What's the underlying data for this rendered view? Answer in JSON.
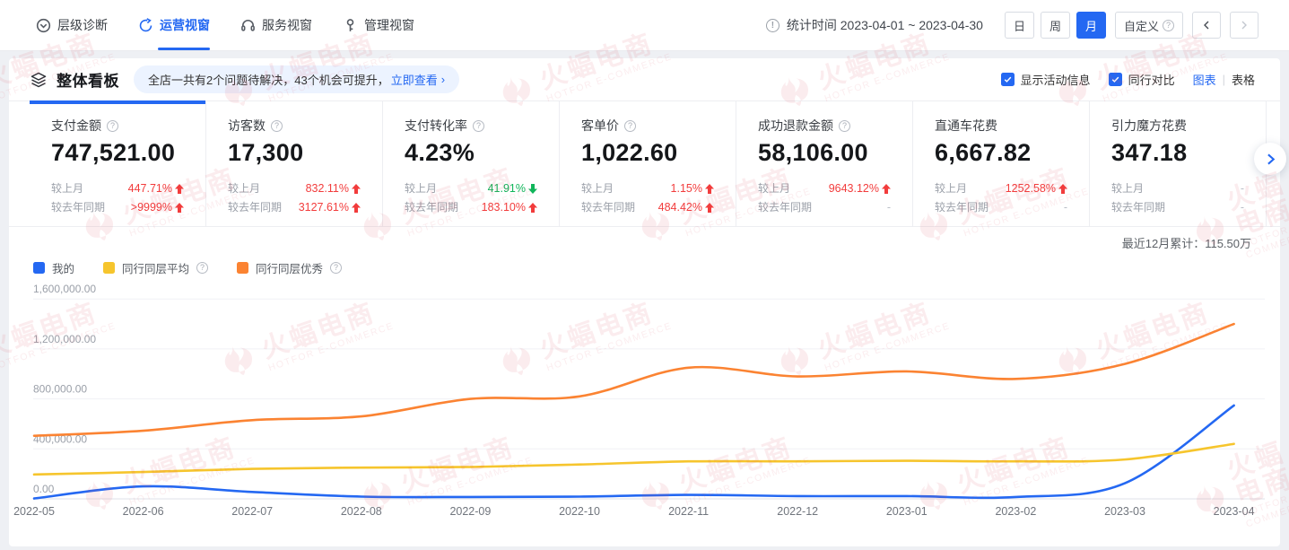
{
  "topbar": {
    "tabs": [
      {
        "id": "layer-diagnosis",
        "label": "层级诊断",
        "icon": "level-icon",
        "active": false
      },
      {
        "id": "operations-view",
        "label": "运营视窗",
        "icon": "operations-icon",
        "active": true
      },
      {
        "id": "service-view",
        "label": "服务视窗",
        "icon": "service-icon",
        "active": false
      },
      {
        "id": "management-view",
        "label": "管理视窗",
        "icon": "management-icon",
        "active": false
      }
    ],
    "stat_time_label": "统计时间 2023-04-01 ~ 2023-04-30",
    "period_buttons": [
      {
        "label": "日",
        "active": false
      },
      {
        "label": "周",
        "active": false
      },
      {
        "label": "月",
        "active": true
      }
    ],
    "custom_button_label": "自定义"
  },
  "board": {
    "title": "整体看板",
    "notice_text": "全店一共有2个问题待解决，43个机会可提升，",
    "notice_link": "立即查看",
    "checkboxes": [
      {
        "label": "显示活动信息",
        "checked": true
      },
      {
        "label": "同行对比",
        "checked": true
      }
    ],
    "view_chart_label": "图表",
    "view_table_label": "表格",
    "active_view": "chart"
  },
  "cards": [
    {
      "title": "支付金额",
      "help": true,
      "value": "747,521.00",
      "active": true,
      "rows": [
        {
          "label": "较上月",
          "value": "447.71%",
          "trend": "up"
        },
        {
          "label": "较去年同期",
          "value": ">9999%",
          "trend": "up"
        }
      ]
    },
    {
      "title": "访客数",
      "help": true,
      "value": "17,300",
      "active": false,
      "rows": [
        {
          "label": "较上月",
          "value": "832.11%",
          "trend": "up"
        },
        {
          "label": "较去年同期",
          "value": "3127.61%",
          "trend": "up"
        }
      ]
    },
    {
      "title": "支付转化率",
      "help": true,
      "value": "4.23%",
      "active": false,
      "rows": [
        {
          "label": "较上月",
          "value": "41.91%",
          "trend": "down"
        },
        {
          "label": "较去年同期",
          "value": "183.10%",
          "trend": "up"
        }
      ]
    },
    {
      "title": "客单价",
      "help": true,
      "value": "1,022.60",
      "active": false,
      "rows": [
        {
          "label": "较上月",
          "value": "1.15%",
          "trend": "up"
        },
        {
          "label": "较去年同期",
          "value": "484.42%",
          "trend": "up"
        }
      ]
    },
    {
      "title": "成功退款金额",
      "help": true,
      "value": "58,106.00",
      "active": false,
      "rows": [
        {
          "label": "较上月",
          "value": "9643.12%",
          "trend": "up"
        },
        {
          "label": "较去年同期",
          "value": "-",
          "trend": "none"
        }
      ]
    },
    {
      "title": "直通车花费",
      "help": false,
      "value": "6,667.82",
      "active": false,
      "rows": [
        {
          "label": "较上月",
          "value": "1252.58%",
          "trend": "up"
        },
        {
          "label": "较去年同期",
          "value": "-",
          "trend": "none"
        }
      ]
    },
    {
      "title": "引力魔方花费",
      "help": false,
      "value": "347.18",
      "active": false,
      "rows": [
        {
          "label": "较上月",
          "value": "-",
          "trend": "none"
        },
        {
          "label": "较去年同期",
          "value": "-",
          "trend": "none"
        }
      ]
    }
  ],
  "chart_header": {
    "cumulative_label": "最近12月累计：115.50万"
  },
  "chart_data": {
    "type": "line",
    "smooth": true,
    "grid": true,
    "legend_position": "top-left",
    "x": [
      "2022-05",
      "2022-06",
      "2022-07",
      "2022-08",
      "2022-09",
      "2022-10",
      "2022-11",
      "2022-12",
      "2023-01",
      "2023-02",
      "2023-03",
      "2023-04"
    ],
    "series": [
      {
        "name": "我的",
        "color": "#2468f2",
        "help": false,
        "values": [
          3000,
          100000,
          55000,
          18000,
          15000,
          18000,
          32000,
          22000,
          22000,
          15000,
          125000,
          747521
        ]
      },
      {
        "name": "同行同层平均",
        "color": "#f6c52d",
        "help": true,
        "values": [
          195000,
          215000,
          240000,
          250000,
          255000,
          275000,
          300000,
          300000,
          305000,
          300000,
          315000,
          440000
        ]
      },
      {
        "name": "同行同层优秀",
        "color": "#fb8332",
        "help": true,
        "values": [
          505000,
          545000,
          630000,
          660000,
          800000,
          820000,
          1050000,
          980000,
          1020000,
          960000,
          1080000,
          1400000
        ]
      }
    ],
    "ylim": [
      0,
      1600000
    ],
    "yticks": [
      "0.00",
      "400,000.00",
      "800,000.00",
      "1,200,000.00",
      "1,600,000.00"
    ]
  },
  "watermark": {
    "cn": "火蝠电商",
    "en": "HOTFOR E-COMMERCE"
  },
  "colors": {
    "accent": "#2468f2",
    "up_red": "#f23c3c",
    "down_green": "#10b55a",
    "series_blue": "#2468f2",
    "series_yellow": "#f6c52d",
    "series_orange": "#fb8332"
  }
}
